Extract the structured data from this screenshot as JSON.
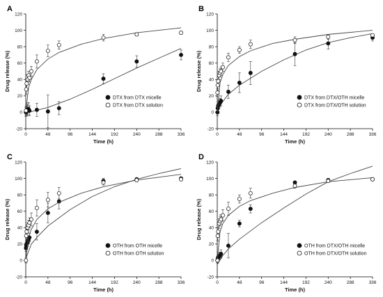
{
  "chart_data": [
    {
      "panel": "A",
      "type": "scatter",
      "xlabel": "Time (h)",
      "ylabel": "Drug release (%)",
      "xlim": [
        0,
        336
      ],
      "ylim": [
        -20,
        120
      ],
      "xticks": [
        0,
        48,
        96,
        144,
        192,
        240,
        288,
        336
      ],
      "yticks": [
        -20,
        0,
        20,
        40,
        60,
        80,
        100,
        120
      ],
      "legend_position": "lower-right",
      "series": [
        {
          "name": "DTX from DTX micelle",
          "marker": "filled-circle",
          "x": [
            0.5,
            1,
            2,
            4,
            6,
            8,
            24,
            48,
            72,
            168,
            240,
            336
          ],
          "y": [
            0,
            1,
            2,
            3,
            4,
            2,
            3,
            1,
            5,
            41,
            62,
            70
          ],
          "error": [
            5,
            5,
            6,
            7,
            8,
            6,
            8,
            20,
            8,
            6,
            7,
            6
          ],
          "fit_curve": [
            [
              0,
              -1
            ],
            [
              48,
              6
            ],
            [
              96,
              16
            ],
            [
              144,
              28
            ],
            [
              192,
              41
            ],
            [
              240,
              54
            ],
            [
              288,
              66
            ],
            [
              336,
              78
            ]
          ]
        },
        {
          "name": "DTX from DTX solution",
          "marker": "open-circle",
          "x": [
            0.5,
            1,
            2,
            4,
            6,
            8,
            12,
            24,
            48,
            72,
            168,
            240,
            336
          ],
          "y": [
            2,
            28,
            35,
            40,
            45,
            42,
            50,
            62,
            75,
            82,
            91,
            95,
            97
          ],
          "error": [
            5,
            6,
            6,
            6,
            5,
            5,
            6,
            8,
            7,
            5,
            4,
            2,
            2
          ],
          "fit_curve": [
            [
              0,
              0
            ],
            [
              6,
              30
            ],
            [
              12,
              40
            ],
            [
              24,
              52
            ],
            [
              48,
              65
            ],
            [
              72,
              73
            ],
            [
              120,
              83
            ],
            [
              168,
              90
            ],
            [
              240,
              97
            ],
            [
              336,
              103
            ]
          ]
        }
      ]
    },
    {
      "panel": "B",
      "type": "scatter",
      "xlabel": "Time (h)",
      "ylabel": "Drug release (%)",
      "xlim": [
        0,
        336
      ],
      "ylim": [
        -20,
        120
      ],
      "xticks": [
        0,
        48,
        96,
        144,
        192,
        240,
        288,
        336
      ],
      "yticks": [
        -20,
        0,
        20,
        40,
        60,
        80,
        100,
        120
      ],
      "legend_position": "lower-right",
      "series": [
        {
          "name": "DTX from DTX/OTH micelle",
          "marker": "filled-circle",
          "x": [
            0.5,
            1,
            2,
            4,
            6,
            8,
            24,
            48,
            72,
            168,
            240,
            336
          ],
          "y": [
            0,
            5,
            8,
            10,
            12,
            14,
            25,
            36,
            48,
            71,
            84,
            91
          ],
          "error": [
            4,
            4,
            5,
            5,
            5,
            6,
            8,
            12,
            14,
            14,
            7,
            4
          ],
          "fit_curve": [
            [
              0,
              0
            ],
            [
              6,
              8
            ],
            [
              12,
              13
            ],
            [
              24,
              22
            ],
            [
              48,
              33
            ],
            [
              96,
              50
            ],
            [
              144,
              64
            ],
            [
              192,
              76
            ],
            [
              240,
              85
            ],
            [
              288,
              91
            ],
            [
              336,
              96
            ]
          ]
        },
        {
          "name": "DTX from DTX/OTH solution",
          "marker": "open-circle",
          "x": [
            0.5,
            1,
            2,
            4,
            6,
            8,
            12,
            24,
            48,
            72,
            168,
            240,
            336
          ],
          "y": [
            24,
            33,
            38,
            45,
            48,
            50,
            55,
            67,
            76,
            83,
            88,
            92,
            94
          ],
          "error": [
            5,
            6,
            6,
            5,
            5,
            5,
            5,
            5,
            4,
            5,
            4,
            3,
            2
          ],
          "fit_curve": [
            [
              0,
              0
            ],
            [
              6,
              36
            ],
            [
              12,
              46
            ],
            [
              24,
              57
            ],
            [
              48,
              68
            ],
            [
              72,
              75
            ],
            [
              120,
              84
            ],
            [
              168,
              89
            ],
            [
              240,
              95
            ],
            [
              336,
              100
            ]
          ]
        }
      ]
    },
    {
      "panel": "C",
      "type": "scatter",
      "xlabel": "Time (h)",
      "ylabel": "Drug release (%)",
      "xlim": [
        0,
        336
      ],
      "ylim": [
        -20,
        120
      ],
      "xticks": [
        0,
        48,
        96,
        144,
        192,
        240,
        288,
        336
      ],
      "yticks": [
        -20,
        0,
        20,
        40,
        60,
        80,
        100,
        120
      ],
      "legend_position": "lower-right",
      "series": [
        {
          "name": "OTH from OTH micelle",
          "marker": "filled-circle",
          "x": [
            0.5,
            1,
            2,
            4,
            6,
            8,
            24,
            48,
            72,
            168,
            240,
            336
          ],
          "y": [
            15,
            18,
            20,
            22,
            25,
            28,
            35,
            58,
            72,
            97,
            99,
            100
          ],
          "error": [
            4,
            4,
            4,
            5,
            5,
            5,
            10,
            12,
            9,
            3,
            2,
            2
          ],
          "fit_curve": [
            [
              0,
              2
            ],
            [
              12,
              20
            ],
            [
              24,
              28
            ],
            [
              48,
              42
            ],
            [
              96,
              62
            ],
            [
              144,
              78
            ],
            [
              192,
              90
            ],
            [
              240,
              99
            ],
            [
              288,
              106
            ],
            [
              336,
              112
            ]
          ]
        },
        {
          "name": "OTH from OTH solution",
          "marker": "open-circle",
          "x": [
            0.5,
            1,
            2,
            4,
            6,
            8,
            12,
            24,
            48,
            72,
            168,
            240,
            336
          ],
          "y": [
            0,
            30,
            35,
            40,
            43,
            46,
            50,
            64,
            74,
            82,
            95,
            98,
            99
          ],
          "error": [
            3,
            6,
            6,
            6,
            6,
            6,
            8,
            10,
            9,
            7,
            3,
            2,
            2
          ],
          "fit_curve": [
            [
              0,
              0
            ],
            [
              6,
              28
            ],
            [
              12,
              38
            ],
            [
              24,
              50
            ],
            [
              48,
              63
            ],
            [
              72,
              71
            ],
            [
              120,
              82
            ],
            [
              168,
              90
            ],
            [
              240,
              98
            ],
            [
              336,
              105
            ]
          ]
        }
      ]
    },
    {
      "panel": "D",
      "type": "scatter",
      "xlabel": "Time (h)",
      "ylabel": "Drug release (%)",
      "xlim": [
        0,
        336
      ],
      "ylim": [
        -20,
        120
      ],
      "xticks": [
        0,
        48,
        96,
        144,
        192,
        240,
        288,
        336
      ],
      "yticks": [
        -20,
        0,
        20,
        40,
        60,
        80,
        100,
        120
      ],
      "legend_position": "lower-right",
      "series": [
        {
          "name": "OTH from DTX/OTH micelle",
          "marker": "filled-circle",
          "x": [
            0.5,
            1,
            2,
            4,
            6,
            8,
            24,
            48,
            72,
            168,
            240,
            336
          ],
          "y": [
            0,
            2,
            4,
            5,
            6,
            8,
            18,
            45,
            63,
            95,
            98,
            99
          ],
          "error": [
            3,
            3,
            3,
            4,
            4,
            5,
            15,
            4,
            5,
            2,
            2,
            2
          ],
          "fit_curve": [
            [
              0,
              -5
            ],
            [
              12,
              6
            ],
            [
              24,
              14
            ],
            [
              48,
              26
            ],
            [
              96,
              46
            ],
            [
              144,
              64
            ],
            [
              192,
              81
            ],
            [
              240,
              96
            ],
            [
              288,
              106
            ],
            [
              336,
              115
            ]
          ]
        },
        {
          "name": "OTH from DTX/OTH solution",
          "marker": "open-circle",
          "x": [
            0.5,
            1,
            2,
            4,
            6,
            8,
            12,
            24,
            48,
            72,
            168,
            240,
            336
          ],
          "y": [
            0,
            30,
            35,
            45,
            48,
            50,
            55,
            63,
            75,
            82,
            91,
            97,
            99
          ],
          "error": [
            3,
            6,
            6,
            6,
            6,
            6,
            7,
            8,
            5,
            6,
            3,
            2,
            2
          ],
          "fit_curve": [
            [
              0,
              0
            ],
            [
              6,
              35
            ],
            [
              12,
              45
            ],
            [
              24,
              55
            ],
            [
              48,
              66
            ],
            [
              72,
              73
            ],
            [
              120,
              82
            ],
            [
              168,
              89
            ],
            [
              240,
              96
            ],
            [
              336,
              101
            ]
          ]
        }
      ]
    }
  ]
}
